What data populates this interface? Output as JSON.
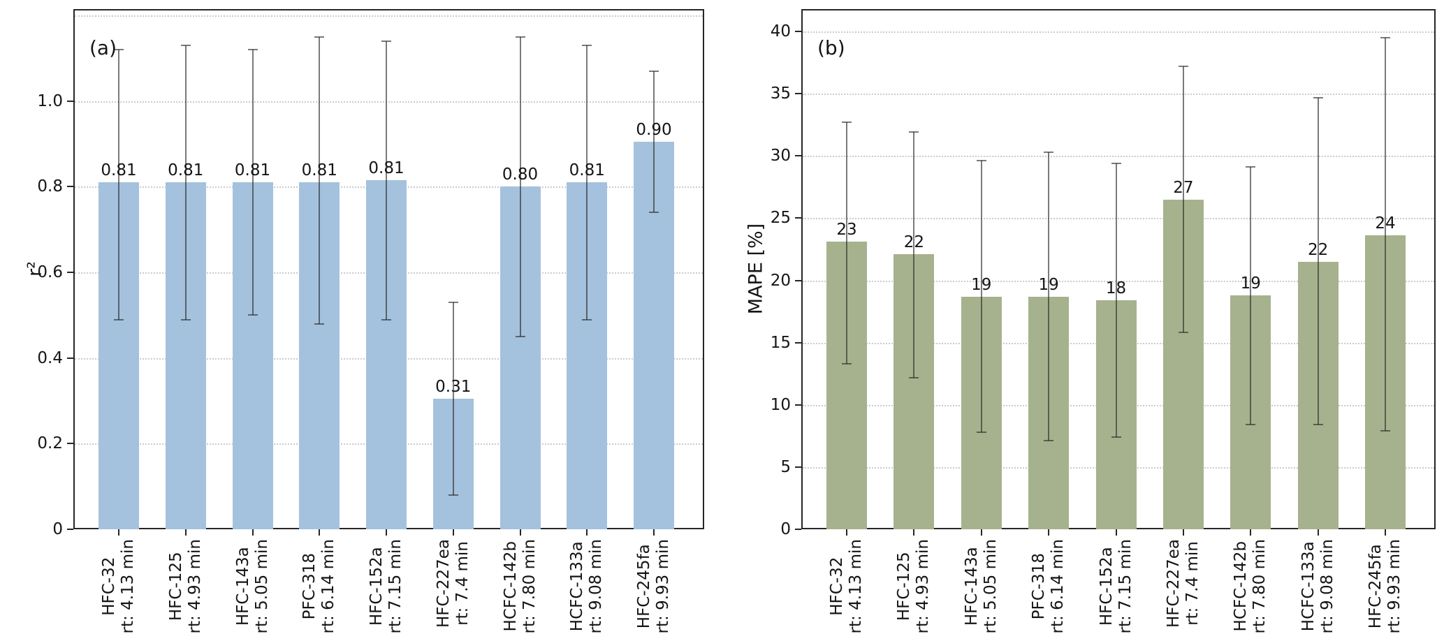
{
  "figure": {
    "background": "#ffffff"
  },
  "chart_data": [
    {
      "type": "bar",
      "panel_label": "(a)",
      "ylabel": "r²",
      "xlabel": "",
      "grid": true,
      "legend": "none",
      "bar_color": "#a4c2dd",
      "error_bar_color": "#555555",
      "ylim": [
        0,
        1.215
      ],
      "yticks": [
        0,
        0.2,
        0.4,
        0.6,
        0.8,
        1.0
      ],
      "ytick_labels": [
        "0",
        "0.2",
        "0.4",
        "0.6",
        "0.8",
        "1.0"
      ],
      "gridlines": [
        0.2,
        0.4,
        0.6,
        0.8,
        1.0,
        1.2
      ],
      "categories": [
        {
          "name": "HFC-32",
          "rt": "rt: 4.13 min"
        },
        {
          "name": "HFC-125",
          "rt": "rt: 4.93 min"
        },
        {
          "name": "HFC-143a",
          "rt": "rt: 5.05 min"
        },
        {
          "name": "PFC-318",
          "rt": "rt: 6.14 min"
        },
        {
          "name": "HFC-152a",
          "rt": "rt: 7.15 min"
        },
        {
          "name": "HFC-227ea",
          "rt": "rt: 7.4 min"
        },
        {
          "name": "HCFC-142b",
          "rt": "rt: 7.80 min"
        },
        {
          "name": "HCFC-133a",
          "rt": "rt: 9.08 min"
        },
        {
          "name": "HFC-245fa",
          "rt": "rt: 9.93 min"
        }
      ],
      "values": [
        0.81,
        0.81,
        0.81,
        0.81,
        0.815,
        0.305,
        0.8,
        0.81,
        0.905
      ],
      "bar_labels": [
        "0.81",
        "0.81",
        "0.81",
        "0.81",
        "0.81",
        "0.31",
        "0.80",
        "0.81",
        "0.90"
      ],
      "error_low": [
        0.49,
        0.49,
        0.5,
        0.48,
        0.49,
        0.08,
        0.45,
        0.49,
        0.74
      ],
      "error_high": [
        1.12,
        1.13,
        1.12,
        1.15,
        1.14,
        0.53,
        1.15,
        1.13,
        1.07
      ]
    },
    {
      "type": "bar",
      "panel_label": "(b)",
      "ylabel": "MAPE [%]",
      "xlabel": "",
      "grid": true,
      "legend": "none",
      "bar_color": "#a6b28d",
      "error_bar_color": "#555555",
      "ylim": [
        0,
        41.8
      ],
      "yticks": [
        0,
        5,
        10,
        15,
        20,
        25,
        30,
        35,
        40
      ],
      "ytick_labels": [
        "0",
        "5",
        "10",
        "15",
        "20",
        "25",
        "30",
        "35",
        "40"
      ],
      "gridlines": [
        5,
        10,
        15,
        20,
        25,
        30,
        35,
        40
      ],
      "categories": [
        {
          "name": "HFC-32",
          "rt": "rt: 4.13 min"
        },
        {
          "name": "HFC-125",
          "rt": "rt: 4.93 min"
        },
        {
          "name": "HFC-143a",
          "rt": "rt: 5.05 min"
        },
        {
          "name": "PFC-318",
          "rt": "rt: 6.14 min"
        },
        {
          "name": "HFC-152a",
          "rt": "rt: 7.15 min"
        },
        {
          "name": "HFC-227ea",
          "rt": "rt: 7.4 min"
        },
        {
          "name": "HCFC-142b",
          "rt": "rt: 7.80 min"
        },
        {
          "name": "HCFC-133a",
          "rt": "rt: 9.08 min"
        },
        {
          "name": "HFC-245fa",
          "rt": "rt: 9.93 min"
        }
      ],
      "values": [
        23.1,
        22.1,
        18.7,
        18.7,
        18.4,
        26.5,
        18.8,
        21.5,
        23.6
      ],
      "bar_labels": [
        "23",
        "22",
        "19",
        "19",
        "18",
        "27",
        "19",
        "22",
        "24"
      ],
      "error_low": [
        13.3,
        12.2,
        7.8,
        7.1,
        7.4,
        15.8,
        8.4,
        8.4,
        7.9
      ],
      "error_high": [
        32.7,
        31.9,
        29.6,
        30.3,
        29.4,
        37.2,
        29.1,
        34.7,
        39.5
      ]
    }
  ]
}
